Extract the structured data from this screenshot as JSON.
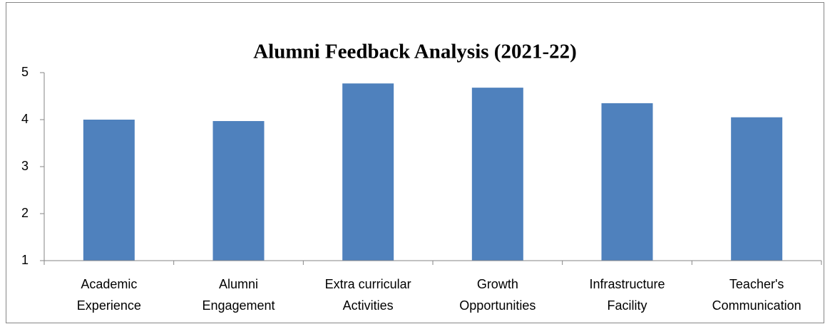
{
  "chart_data": {
    "type": "bar",
    "title": "Alumni Feedback Analysis (2021-22)",
    "categories": [
      [
        "Academic",
        "Experience"
      ],
      [
        "Alumni",
        "Engagement"
      ],
      [
        "Extra curricular",
        "Activities"
      ],
      [
        "Growth",
        "Opportunities"
      ],
      [
        "Infrastructure",
        "Facility"
      ],
      [
        "Teacher's",
        "Communication"
      ]
    ],
    "values": [
      4.0,
      3.97,
      4.77,
      4.68,
      4.35,
      4.05
    ],
    "color": "#4f81bd",
    "ylim": [
      1,
      5
    ],
    "yticks": [
      1,
      2,
      3,
      4,
      5
    ],
    "grid": false
  }
}
